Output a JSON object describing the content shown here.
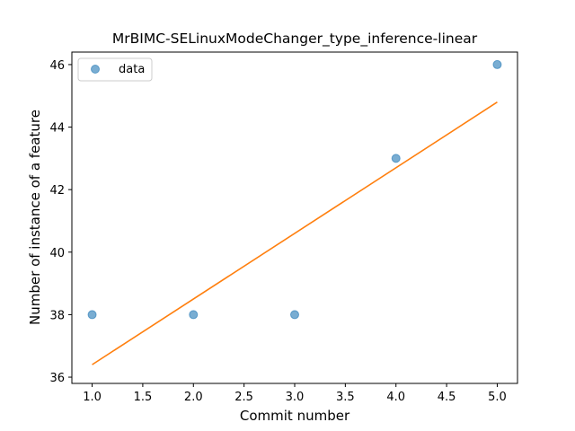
{
  "chart_data": {
    "type": "scatter",
    "title": "MrBIMC-SELinuxModeChanger_type_inference-linear",
    "xlabel": "Commit number",
    "ylabel": "Number of instance of a feature",
    "xlim": [
      0.8,
      5.2
    ],
    "ylim": [
      35.8,
      46.4
    ],
    "x_ticks": [
      "1.0",
      "1.5",
      "2.0",
      "2.5",
      "3.0",
      "3.5",
      "4.0",
      "4.5",
      "5.0"
    ],
    "y_ticks": [
      "36",
      "38",
      "40",
      "42",
      "44",
      "46"
    ],
    "grid": false,
    "legend": {
      "placement": "top-left",
      "entries": [
        "data"
      ]
    },
    "series": [
      {
        "name": "data",
        "kind": "scatter",
        "color": "#1f77b4",
        "x": [
          1,
          2,
          3,
          4,
          5
        ],
        "y": [
          38,
          38,
          38,
          43,
          46
        ]
      },
      {
        "kind": "line",
        "color": "#ff7f0e",
        "x": [
          1,
          5
        ],
        "y": [
          36.4,
          44.8
        ]
      }
    ]
  }
}
